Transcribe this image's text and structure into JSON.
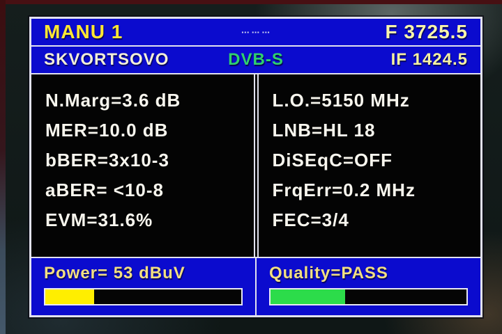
{
  "header": {
    "mode": "MANU 1",
    "indicator": "▪▪▪ ▪▪▪ ▪▪▪",
    "frequency": "F 3725.5"
  },
  "subheader": {
    "satellite_name": "SKVORTSOVO",
    "standard": "DVB-S",
    "if_frequency": "IF 1424.5"
  },
  "measurements": {
    "rows": [
      "N.Marg=3.6 dB",
      "MER=10.0 dB",
      "bBER=3x10-3",
      "aBER= <10-8",
      "EVM=31.6%"
    ]
  },
  "settings": {
    "rows": [
      "L.O.=5150 MHz",
      "LNB=HL 18",
      "DiSEqC=OFF",
      "FrqErr=0.2 MHz",
      "FEC=3/4"
    ]
  },
  "power": {
    "label": "Power= 53 dBuV",
    "fill_width": "25%",
    "fill_color": "#ffee00"
  },
  "quality": {
    "label": "Quality=PASS",
    "fill_width": "38%",
    "fill_color": "#2cdc4a"
  },
  "colors": {
    "panel_blue": "#0b0bce",
    "accent_yellow": "#ffe733",
    "standard_green": "#2fd06e",
    "border_silver": "#e2e2ee"
  }
}
